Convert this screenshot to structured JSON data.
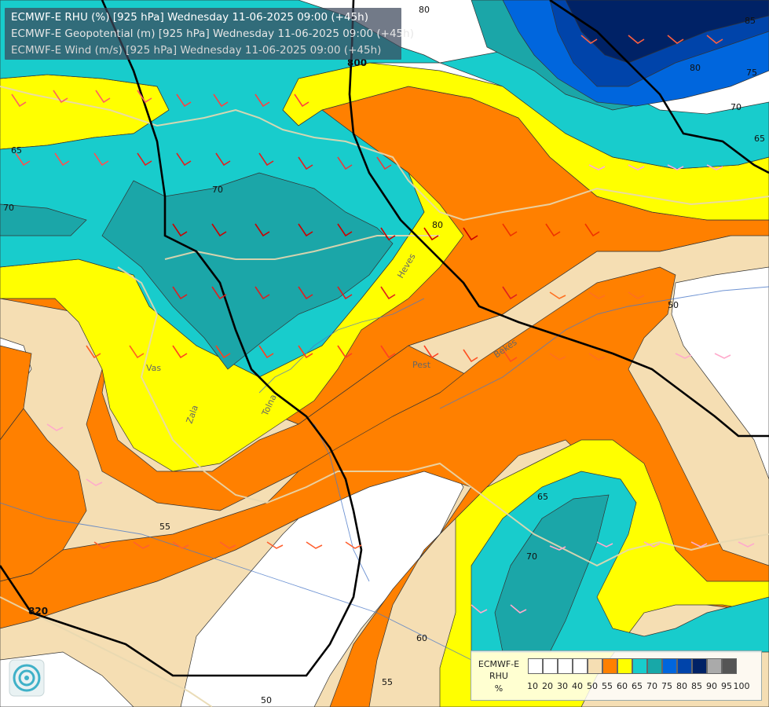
{
  "titles": [
    "ECMWF-E RHU (%) [925 hPa] Wednesday 11-06-2025 09:00 (+45h)",
    "ECMWF-E Geopotential (m) [925 hPa] Wednesday 11-06-2025 09:00 (+45h)",
    "ECMWF-E Wind (m/s) [925 hPa] Wednesday 11-06-2025 09:00 (+45h)"
  ],
  "title_colors": [
    "#ffffff",
    "#e8e8e8",
    "#d8d8d8"
  ],
  "legend": {
    "line1": "ECMWF-E",
    "line2": "RHU",
    "line3": "%",
    "swatch_colors": [
      "#ffffff",
      "#ffffff",
      "#ffffff",
      "#ffffff",
      "#f5deb3",
      "#ff8000",
      "#ffff00",
      "#18cccc",
      "#18a8a8",
      "#0066dd",
      "#0044aa",
      "#002266",
      "#aaaaaa",
      "#555555"
    ],
    "ticks": [
      "10",
      "20",
      "30",
      "40",
      "50",
      "55",
      "60",
      "65",
      "70",
      "75",
      "80",
      "85",
      "90",
      "95",
      "100"
    ]
  },
  "contour_labels": {
    "rhu": [
      "80",
      "85",
      "75",
      "70",
      "65",
      "65",
      "70",
      "70",
      "80",
      "50",
      "55",
      "65",
      "70",
      "60",
      "55",
      "50"
    ],
    "geopotential": [
      "800",
      "820"
    ]
  },
  "place_labels": [
    "Vas",
    "Zala",
    "Tolna",
    "Pest",
    "Heves",
    "Békés"
  ],
  "map": {
    "region": "Hungary / Central Europe",
    "variable": "Relative humidity at 925 hPa",
    "levels_percent": [
      10,
      20,
      30,
      40,
      50,
      55,
      60,
      65,
      70,
      75,
      80,
      85,
      90,
      95,
      100
    ]
  },
  "colors": {
    "white": "#ffffff",
    "wheat": "#f5deb3",
    "orange": "#ff8000",
    "yellow": "#ffff00",
    "cyan": "#18cccc",
    "teal": "#18a8a8",
    "blue": "#0066dd",
    "midblue": "#0044aa",
    "navy": "#002266",
    "dkcyan": "#1aa0b0",
    "black": "#000000"
  },
  "logo": "ogimet-logo-icon"
}
